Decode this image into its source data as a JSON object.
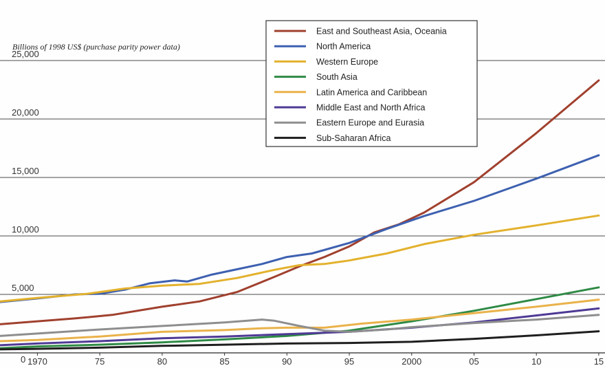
{
  "chart_data": {
    "type": "line",
    "ylabel": "Billions of 1998 US$ (purchase parity power data)",
    "xlabel": "",
    "xlim": [
      1967,
      2015.5
    ],
    "ylim": [
      0,
      25000
    ],
    "y_ticks": [
      {
        "value": 0,
        "label": "0"
      },
      {
        "value": 5000,
        "label": "5,000"
      },
      {
        "value": 10000,
        "label": "10,000"
      },
      {
        "value": 15000,
        "label": "15,000"
      },
      {
        "value": 20000,
        "label": "20,000"
      },
      {
        "value": 25000,
        "label": "25,000"
      }
    ],
    "x_ticks": [
      {
        "value": 1970,
        "label": "1970"
      },
      {
        "value": 1975,
        "label": "75"
      },
      {
        "value": 1980,
        "label": "80"
      },
      {
        "value": 1985,
        "label": "85"
      },
      {
        "value": 1990,
        "label": "90"
      },
      {
        "value": 1995,
        "label": "95"
      },
      {
        "value": 2000,
        "label": "2000"
      },
      {
        "value": 2005,
        "label": "05"
      },
      {
        "value": 2010,
        "label": "10"
      },
      {
        "value": 2015,
        "label": "15"
      }
    ],
    "grid": "horizontal",
    "legend_position": "top-center",
    "series": [
      {
        "name": "East and Southeast Asia, Oceania",
        "color": "#a0402e",
        "points": [
          [
            1967,
            2450
          ],
          [
            1970,
            2700
          ],
          [
            1973,
            2950
          ],
          [
            1976,
            3250
          ],
          [
            1980,
            3950
          ],
          [
            1983,
            4400
          ],
          [
            1986,
            5200
          ],
          [
            1989,
            6500
          ],
          [
            1991,
            7400
          ],
          [
            1993,
            8200
          ],
          [
            1995,
            9100
          ],
          [
            1997,
            10300
          ],
          [
            1999,
            11000
          ],
          [
            2001,
            12000
          ],
          [
            2005,
            14600
          ],
          [
            2010,
            18800
          ],
          [
            2015,
            23300
          ]
        ]
      },
      {
        "name": "North America",
        "color": "#3d60b0",
        "points": [
          [
            1967,
            4350
          ],
          [
            1970,
            4650
          ],
          [
            1973,
            5000
          ],
          [
            1975,
            5050
          ],
          [
            1977,
            5400
          ],
          [
            1979,
            5950
          ],
          [
            1981,
            6200
          ],
          [
            1982,
            6100
          ],
          [
            1984,
            6700
          ],
          [
            1986,
            7150
          ],
          [
            1988,
            7600
          ],
          [
            1990,
            8200
          ],
          [
            1992,
            8500
          ],
          [
            1995,
            9400
          ],
          [
            1998,
            10600
          ],
          [
            2001,
            11700
          ],
          [
            2005,
            13000
          ],
          [
            2010,
            14900
          ],
          [
            2015,
            16900
          ]
        ]
      },
      {
        "name": "Western Europe",
        "color": "#e3b12c",
        "points": [
          [
            1967,
            4400
          ],
          [
            1970,
            4700
          ],
          [
            1974,
            5050
          ],
          [
            1977,
            5500
          ],
          [
            1980,
            5750
          ],
          [
            1983,
            5900
          ],
          [
            1986,
            6400
          ],
          [
            1989,
            7100
          ],
          [
            1991,
            7500
          ],
          [
            1993,
            7600
          ],
          [
            1995,
            7900
          ],
          [
            1998,
            8500
          ],
          [
            2001,
            9300
          ],
          [
            2005,
            10100
          ],
          [
            2010,
            10900
          ],
          [
            2015,
            11750
          ]
        ]
      },
      {
        "name": "South Asia",
        "color": "#2e8a45",
        "points": [
          [
            1967,
            400
          ],
          [
            1970,
            550
          ],
          [
            1975,
            700
          ],
          [
            1980,
            900
          ],
          [
            1985,
            1150
          ],
          [
            1990,
            1450
          ],
          [
            1995,
            1900
          ],
          [
            2000,
            2700
          ],
          [
            2005,
            3600
          ],
          [
            2010,
            4600
          ],
          [
            2015,
            5600
          ]
        ]
      },
      {
        "name": "Latin America and Caribbean",
        "color": "#eab24a",
        "points": [
          [
            1967,
            1000
          ],
          [
            1970,
            1100
          ],
          [
            1975,
            1400
          ],
          [
            1980,
            1800
          ],
          [
            1985,
            1950
          ],
          [
            1988,
            2100
          ],
          [
            1990,
            2150
          ],
          [
            1993,
            2150
          ],
          [
            1996,
            2500
          ],
          [
            2000,
            2850
          ],
          [
            2005,
            3400
          ],
          [
            2010,
            3950
          ],
          [
            2015,
            4550
          ]
        ]
      },
      {
        "name": "Middle East and North Africa",
        "color": "#4f3a95",
        "points": [
          [
            1967,
            650
          ],
          [
            1970,
            800
          ],
          [
            1975,
            1000
          ],
          [
            1980,
            1250
          ],
          [
            1985,
            1400
          ],
          [
            1990,
            1600
          ],
          [
            1995,
            1800
          ],
          [
            2000,
            2150
          ],
          [
            2005,
            2600
          ],
          [
            2010,
            3200
          ],
          [
            2015,
            3800
          ]
        ]
      },
      {
        "name": "Eastern Europe and Eurasia",
        "color": "#8e8e8e",
        "points": [
          [
            1967,
            1450
          ],
          [
            1970,
            1650
          ],
          [
            1975,
            2000
          ],
          [
            1980,
            2300
          ],
          [
            1985,
            2600
          ],
          [
            1988,
            2850
          ],
          [
            1989,
            2750
          ],
          [
            1991,
            2300
          ],
          [
            1993,
            1900
          ],
          [
            1995,
            1800
          ],
          [
            1998,
            2000
          ],
          [
            2000,
            2200
          ],
          [
            2005,
            2550
          ],
          [
            2010,
            2850
          ],
          [
            2015,
            3250
          ]
        ]
      },
      {
        "name": "Sub-Saharan Africa",
        "color": "#1e1e1e",
        "points": [
          [
            1967,
            300
          ],
          [
            1970,
            350
          ],
          [
            1975,
            450
          ],
          [
            1980,
            600
          ],
          [
            1985,
            700
          ],
          [
            1990,
            800
          ],
          [
            1995,
            850
          ],
          [
            2000,
            950
          ],
          [
            2005,
            1200
          ],
          [
            2010,
            1500
          ],
          [
            2015,
            1850
          ]
        ]
      }
    ]
  }
}
